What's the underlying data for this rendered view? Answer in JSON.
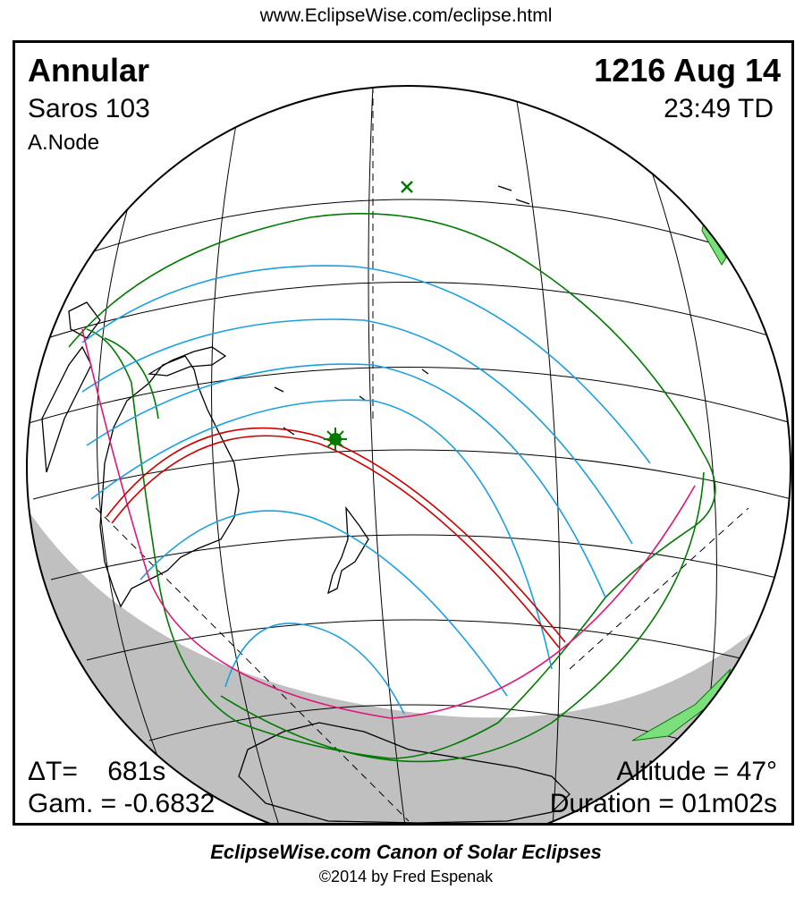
{
  "header": {
    "url": "www.EclipseWise.com/eclipse.html"
  },
  "eclipse": {
    "type": "Annular",
    "date": "1216 Aug 14",
    "saros": "Saros 103",
    "time": "23:49 TD",
    "node": "A.Node",
    "delta_t": "ΔT=    681s",
    "gamma": "Gam. = -0.6832",
    "altitude": "Altitude = 47°",
    "duration": "Duration = 01m02s"
  },
  "footer": {
    "title": "EclipseWise.com Canon of Solar Eclipses",
    "copyright": "©2014 by Fred Espenak"
  },
  "colors": {
    "central_path": "#cc0000",
    "penumbral_limits": "#007a00",
    "magnitude_lines": "#1aa0e0",
    "rise_set_curve": "#e0147a",
    "night_side": "#c0c0c0",
    "greatest_eclipse_marker": "#007a00"
  }
}
